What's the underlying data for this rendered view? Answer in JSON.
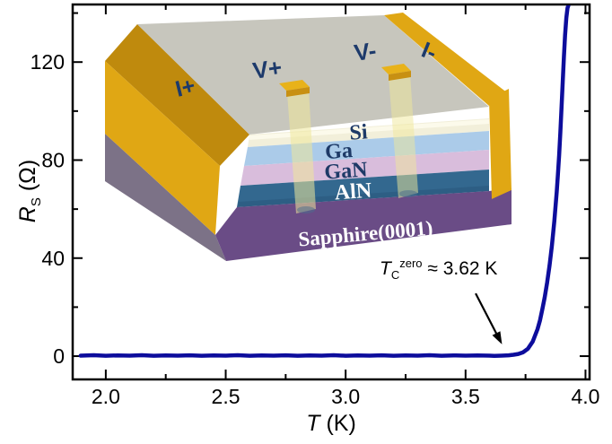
{
  "chart_data": {
    "type": "line",
    "title": "",
    "xlabel_symbol": "T",
    "xlabel_unit": " (K)",
    "ylabel_symbol": "R",
    "ylabel_sub": "S",
    "ylabel_unit": " (Ω)",
    "xlim": [
      1.862,
      4.017
    ],
    "ylim": [
      -9.5,
      143.5
    ],
    "x_major_ticks": [
      2.0,
      2.5,
      3.0,
      3.5,
      4.0
    ],
    "x_tick_labels": [
      "2.0",
      "2.5",
      "3.0",
      "3.5",
      "4.0"
    ],
    "x_minor_ticks": [
      2.25,
      2.75,
      3.25,
      3.75
    ],
    "y_major_ticks": [
      0,
      40,
      80,
      120
    ],
    "y_tick_labels": [
      "0",
      "40",
      "80",
      "120"
    ],
    "y_minor_ticks": [
      20,
      60,
      100,
      140
    ],
    "grid": false,
    "frame_color": "#000000",
    "series": [
      {
        "name": "sheet-resistance-vs-temperature",
        "color": "#0d0d9c",
        "points": [
          [
            1.895,
            0.2
          ],
          [
            1.95,
            0.4
          ],
          [
            2.0,
            0.15
          ],
          [
            2.05,
            0.3
          ],
          [
            2.1,
            0.2
          ],
          [
            2.15,
            0.4
          ],
          [
            2.2,
            0.15
          ],
          [
            2.25,
            0.3
          ],
          [
            2.3,
            0.2
          ],
          [
            2.35,
            0.35
          ],
          [
            2.4,
            0.15
          ],
          [
            2.45,
            0.3
          ],
          [
            2.5,
            0.2
          ],
          [
            2.55,
            0.4
          ],
          [
            2.6,
            0.15
          ],
          [
            2.65,
            0.3
          ],
          [
            2.7,
            0.2
          ],
          [
            2.75,
            0.35
          ],
          [
            2.8,
            0.15
          ],
          [
            2.85,
            0.3
          ],
          [
            2.9,
            0.2
          ],
          [
            2.95,
            0.4
          ],
          [
            3.0,
            0.15
          ],
          [
            3.05,
            0.3
          ],
          [
            3.1,
            0.2
          ],
          [
            3.15,
            0.35
          ],
          [
            3.2,
            0.15
          ],
          [
            3.25,
            0.3
          ],
          [
            3.3,
            0.2
          ],
          [
            3.35,
            0.4
          ],
          [
            3.4,
            0.15
          ],
          [
            3.45,
            0.3
          ],
          [
            3.5,
            0.2
          ],
          [
            3.55,
            0.3
          ],
          [
            3.6,
            0.2
          ],
          [
            3.62,
            0.1
          ],
          [
            3.65,
            0.2
          ],
          [
            3.68,
            0.35
          ],
          [
            3.7,
            0.55
          ],
          [
            3.72,
            0.9
          ],
          [
            3.74,
            1.6
          ],
          [
            3.76,
            3
          ],
          [
            3.78,
            6
          ],
          [
            3.8,
            11
          ],
          [
            3.81,
            14.5
          ],
          [
            3.82,
            19
          ],
          [
            3.83,
            24
          ],
          [
            3.84,
            30
          ],
          [
            3.85,
            37
          ],
          [
            3.86,
            45
          ],
          [
            3.87,
            55
          ],
          [
            3.88,
            67
          ],
          [
            3.885,
            74
          ],
          [
            3.89,
            82
          ],
          [
            3.895,
            91
          ],
          [
            3.9,
            101
          ],
          [
            3.905,
            112
          ],
          [
            3.91,
            122
          ],
          [
            3.915,
            131
          ],
          [
            3.92,
            138
          ],
          [
            3.925,
            142
          ],
          [
            3.93,
            143.5
          ]
        ]
      }
    ],
    "annotation": {
      "symbol": "T",
      "sub": "C",
      "sup": "zero",
      "rest": " ≈ 3.62 K",
      "arrow_from": [
        3.542,
        25.6
      ],
      "arrow_to": [
        3.652,
        4.8
      ]
    }
  },
  "inset": {
    "contacts": {
      "i_plus": "I+",
      "v_plus": "V+",
      "v_minus": "V-",
      "i_minus": "I-"
    },
    "layers": [
      {
        "label": "Si",
        "color": "#f2efda",
        "label_color": "#1e3a67"
      },
      {
        "label": "Ga",
        "color": "#abcbe9",
        "label_color": "#1e3a67"
      },
      {
        "label": "GaN",
        "color": "#d9bddc",
        "label_color": "#1e3a67"
      },
      {
        "label": "AlN",
        "color": "#33688f",
        "label_color": "#ffffff"
      },
      {
        "label": "Sapphire(0001)",
        "color": "#6a4c86",
        "label_color": "#ffffff"
      }
    ],
    "colors": {
      "electrode": "#e0a714",
      "electrode_dark": "#bf8a0d",
      "top_surface": "#c7c6bd",
      "substrate_side": "#7c7287",
      "probe": "#efe79a",
      "contact_label": "#1d3a6b"
    }
  }
}
